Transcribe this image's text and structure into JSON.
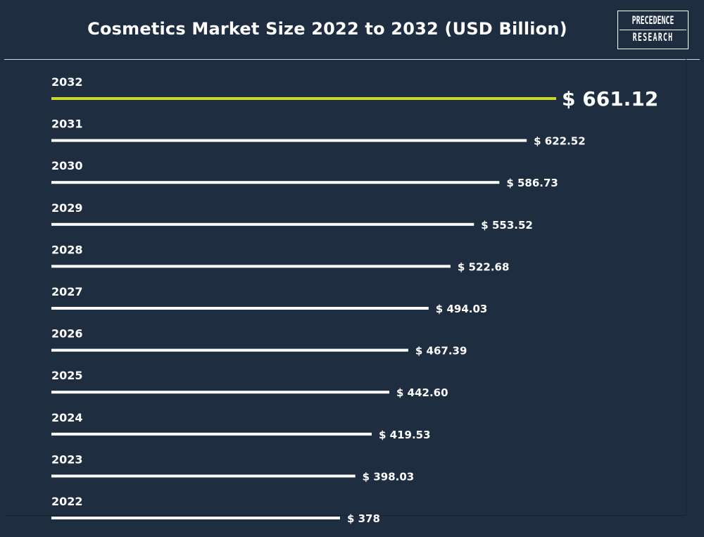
{
  "title": "Cosmetics Market Size 2022 to 2032 (USD Billion)",
  "logo": {
    "line1": "PRECEDENCE",
    "line2": "RESEARCH"
  },
  "colors": {
    "background": "#1f2d40",
    "bar": "#ffffff",
    "highlight_bar": "#c7d92a",
    "text": "#ffffff"
  },
  "chart_data": {
    "type": "bar",
    "orientation": "horizontal",
    "title": "Cosmetics Market Size 2022 to 2032 (USD Billion)",
    "categories": [
      "2032",
      "2031",
      "2030",
      "2029",
      "2028",
      "2027",
      "2026",
      "2025",
      "2024",
      "2023",
      "2022"
    ],
    "values": [
      661.12,
      622.52,
      586.73,
      553.52,
      522.68,
      494.03,
      467.39,
      442.6,
      419.53,
      398.03,
      378
    ],
    "value_labels": [
      "$ 661.12",
      "$ 622.52",
      "$ 586.73",
      "$ 553.52",
      "$ 522.68",
      "$ 494.03",
      "$ 467.39",
      "$ 442.60",
      "$ 419.53",
      "$ 398.03",
      "$ 378"
    ],
    "highlight_category": "2032",
    "xlabel": "",
    "ylabel": "",
    "grid": false,
    "legend": "none"
  }
}
